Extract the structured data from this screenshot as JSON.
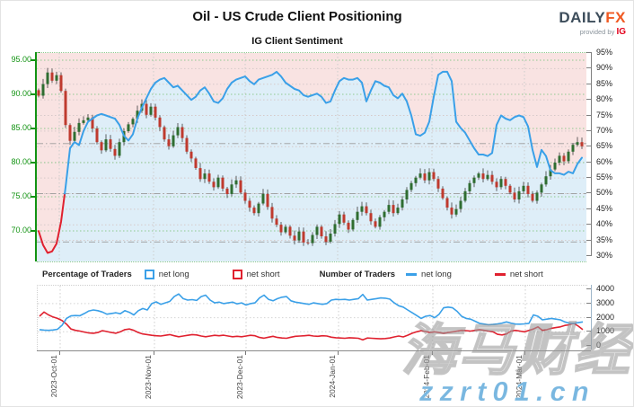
{
  "header": {
    "title": "Oil - US Crude Client Positioning",
    "subtitle": "IG Client Sentiment",
    "logo": {
      "brand_primary": "DAILY",
      "brand_secondary": "FX",
      "provided_by": "provided by",
      "provider": "IG"
    }
  },
  "legend": {
    "pct_group_label": "Percentage of Traders",
    "pct_net_long": "net long",
    "pct_net_short": "net short",
    "num_group_label": "Number of Traders",
    "num_net_long": "net long",
    "num_net_short": "net short"
  },
  "watermark": {
    "cjk": "海马财经",
    "url": "zzrt01.cn"
  },
  "chart_data": [
    {
      "id": "price_sentiment",
      "type": "candlestick+line",
      "price_axis": {
        "side": "left",
        "ticks": [
          "95.00",
          "90.00",
          "85.00",
          "80.00",
          "75.00",
          "70.00"
        ],
        "min": 65.5,
        "max": 96.0,
        "color": "#129312"
      },
      "pct_axis": {
        "side": "right",
        "ticks": [
          "95%",
          "90%",
          "85%",
          "80%",
          "75%",
          "70%",
          "65%",
          "60%",
          "55%",
          "50%",
          "45%",
          "40%",
          "35%",
          "30%"
        ],
        "min": 28,
        "max": 95
      },
      "x_labels": [
        "2023-Oct-01",
        "2023-Nov-01",
        "2023-Dec-01",
        "2024-Jan-01",
        "2024-Feb-01",
        "2024-Mar-01"
      ],
      "month_tick_candle_idx": [
        4.6,
        25.6,
        46.0,
        66.6,
        87.6,
        108.2
      ],
      "reference_lines_pct": [
        66,
        50,
        34.5
      ],
      "fill_above": "#f9e3e2",
      "fill_below": "#deeef8",
      "line_long_color": "#3aa0e8",
      "line_short_color": "#e0212f",
      "candle_up_color": "#2f6d31",
      "candle_down_color": "#bf3a2e",
      "wick_color": "#3c3c3c",
      "grid_price_color": "#8fc98f",
      "grid_pct_color": "#d6c9c9",
      "grid_month_color": "#cccccc",
      "reference_line_color": "#9a9a9a",
      "candles_close": [
        89.8,
        91.5,
        93.2,
        92.0,
        92.8,
        90.5,
        85.5,
        83.2,
        84.5,
        85.8,
        86.2,
        86.6,
        85.0,
        83.0,
        81.8,
        83.4,
        82.0,
        81.0,
        83.0,
        84.6,
        85.6,
        86.4,
        87.6,
        88.6,
        87.0,
        88.2,
        86.6,
        85.2,
        83.4,
        82.4,
        84.0,
        85.2,
        83.6,
        81.6,
        80.6,
        79.2,
        77.6,
        78.4,
        77.2,
        76.4,
        77.8,
        76.2,
        75.4,
        76.8,
        77.4,
        75.6,
        74.4,
        73.4,
        72.6,
        74.0,
        75.4,
        73.5,
        71.8,
        70.9,
        69.8,
        70.6,
        69.3,
        68.6,
        69.9,
        68.3,
        68.2,
        69.4,
        70.6,
        69.2,
        68.4,
        69.6,
        71.0,
        72.4,
        71.2,
        70.2,
        71.6,
        72.8,
        73.6,
        72.6,
        71.4,
        70.6,
        72.0,
        72.8,
        73.8,
        72.6,
        73.4,
        74.6,
        76.0,
        77.0,
        77.8,
        78.4,
        77.4,
        78.6,
        77.6,
        76.2,
        74.8,
        73.4,
        72.4,
        73.2,
        74.4,
        75.8,
        77.0,
        77.8,
        78.4,
        77.6,
        78.2,
        77.2,
        76.4,
        77.6,
        76.6,
        75.6,
        74.6,
        75.8,
        76.6,
        75.4,
        74.4,
        75.6,
        76.8,
        78.0,
        79.0,
        80.0,
        81.0,
        80.2,
        81.6,
        82.6,
        83.0,
        82.4
      ],
      "sentiment_pct_net_long": [
        38,
        33.5,
        31,
        31.5,
        34,
        41,
        52,
        64.5,
        66.5,
        65.5,
        70,
        73,
        74,
        75,
        75.5,
        75,
        74.5,
        74,
        72,
        68.5,
        67,
        69,
        74,
        77.5,
        80.5,
        83.5,
        85.5,
        86.5,
        87,
        85.5,
        84,
        84.5,
        83,
        81.5,
        80,
        81,
        83,
        84,
        82,
        79.5,
        79,
        80.5,
        83.5,
        85.5,
        86.5,
        87,
        87.5,
        86,
        85,
        86.5,
        87,
        87.5,
        88,
        89,
        87.5,
        85.5,
        84.5,
        83.5,
        83,
        81.5,
        81,
        81.5,
        82,
        81,
        79,
        79.5,
        83,
        86,
        87,
        86.5,
        86.5,
        87,
        85.5,
        79.5,
        83,
        86,
        85.5,
        84.5,
        84,
        81.5,
        80.5,
        82,
        79.5,
        75,
        69,
        68.5,
        69.5,
        73,
        81,
        88,
        89,
        89,
        86,
        73,
        71,
        69.5,
        67,
        64.5,
        62.5,
        62.5,
        62,
        63,
        72,
        75,
        74,
        73.5,
        74.5,
        75,
        74.5,
        71.5,
        64,
        58.5,
        64,
        62,
        57.5,
        56.5,
        56.5,
        56,
        57,
        56.5,
        59.5,
        61.5
      ]
    },
    {
      "id": "trader_count",
      "type": "line",
      "y_axis": {
        "side": "right",
        "ticks": [
          "4000",
          "3000",
          "2000",
          "1000",
          "0"
        ],
        "min": 0,
        "max": 4300
      },
      "grid_color": "#d4d4d4",
      "grid_month_color": "#cccccc",
      "series": [
        {
          "name": "net short",
          "color": "#e0212f",
          "values": [
            2100,
            2400,
            2200,
            2050,
            1950,
            1800,
            1550,
            1200,
            1100,
            1050,
            980,
            920,
            900,
            950,
            1080,
            1020,
            950,
            900,
            1000,
            1150,
            1200,
            1100,
            950,
            850,
            800,
            750,
            720,
            700,
            750,
            800,
            720,
            650,
            700,
            750,
            800,
            780,
            700,
            650,
            700,
            750,
            720,
            760,
            700,
            650,
            680,
            650,
            700,
            750,
            720,
            600,
            550,
            620,
            680,
            600,
            560,
            540,
            620,
            680,
            700,
            720,
            750,
            700,
            680,
            720,
            700,
            620,
            580,
            560,
            540,
            580,
            560,
            540,
            430,
            560,
            540,
            520,
            500,
            520,
            560,
            640,
            700,
            640,
            760,
            900,
            1000,
            1080,
            1020,
            950,
            1000,
            950,
            900,
            950,
            1000,
            1050,
            1100,
            1080,
            1050,
            1100,
            1150,
            1100,
            1050,
            1000,
            820,
            780,
            850,
            1050,
            1100,
            1050,
            1000,
            1100,
            1200,
            1350,
            1100,
            1150,
            1250,
            1300,
            1350,
            1450,
            1500,
            1600,
            1400,
            1150
          ]
        },
        {
          "name": "net long",
          "color": "#3aa0e8",
          "values": [
            1150,
            1120,
            1100,
            1130,
            1180,
            1450,
            1950,
            2130,
            2150,
            2140,
            2300,
            2480,
            2550,
            2500,
            2400,
            2250,
            2300,
            2350,
            2280,
            2500,
            2380,
            2200,
            2500,
            2650,
            2550,
            3000,
            3120,
            2950,
            3050,
            3150,
            3500,
            3680,
            3350,
            3250,
            3280,
            3220,
            3500,
            3600,
            3250,
            3050,
            3100,
            3000,
            3050,
            3100,
            2980,
            3050,
            2900,
            3000,
            3050,
            3400,
            3600,
            3300,
            3200,
            3350,
            3450,
            3500,
            3200,
            3100,
            3050,
            3000,
            2950,
            3050,
            3000,
            2950,
            3000,
            3250,
            3300,
            3280,
            3300,
            3250,
            3300,
            3350,
            3650,
            3250,
            3300,
            3350,
            3400,
            3380,
            3320,
            3050,
            2850,
            2750,
            2550,
            2350,
            2150,
            1950,
            2100,
            2150,
            2000,
            2250,
            2700,
            2750,
            2700,
            2450,
            2100,
            1950,
            1900,
            1750,
            1600,
            1550,
            1500,
            1520,
            1560,
            1620,
            1700,
            1620,
            1550,
            1540,
            1560,
            1600,
            2200,
            2100,
            1850,
            1900,
            1950,
            1900,
            1850,
            1700,
            1620,
            1600,
            1650,
            1700
          ]
        }
      ]
    }
  ]
}
